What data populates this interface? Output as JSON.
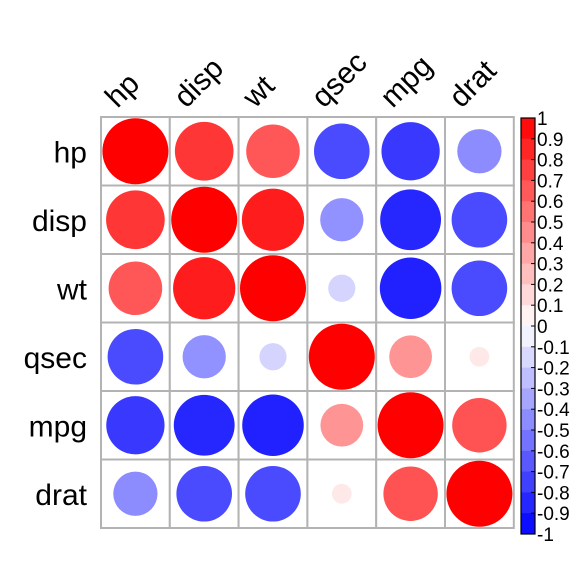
{
  "chart_data": {
    "type": "heatmap",
    "variables": [
      "hp",
      "disp",
      "wt",
      "qsec",
      "mpg",
      "drat"
    ],
    "matrix": [
      [
        1.0,
        0.79,
        0.66,
        -0.71,
        -0.78,
        -0.45
      ],
      [
        0.79,
        1.0,
        0.89,
        -0.43,
        -0.85,
        -0.71
      ],
      [
        0.66,
        0.89,
        1.0,
        -0.17,
        -0.87,
        -0.71
      ],
      [
        -0.71,
        -0.43,
        -0.17,
        1.0,
        0.42,
        0.09
      ],
      [
        -0.78,
        -0.85,
        -0.87,
        0.42,
        1.0,
        0.68
      ],
      [
        -0.45,
        -0.71,
        -0.71,
        0.09,
        0.68,
        1.0
      ]
    ],
    "colorbar": {
      "range": [
        -1,
        1
      ],
      "ticks": [
        "1",
        "0.9",
        "0.8",
        "0.7",
        "0.6",
        "0.5",
        "0.4",
        "0.3",
        "0.2",
        "0.1",
        "0",
        "-0.1",
        "-0.2",
        "-0.3",
        "-0.4",
        "-0.5",
        "-0.6",
        "-0.7",
        "-0.8",
        "-0.9",
        "-1"
      ],
      "colors": {
        "negative": "#0000FF",
        "zero": "#FFFFFF",
        "positive": "#FF0000"
      }
    },
    "glyph": "circle",
    "grid": true
  }
}
